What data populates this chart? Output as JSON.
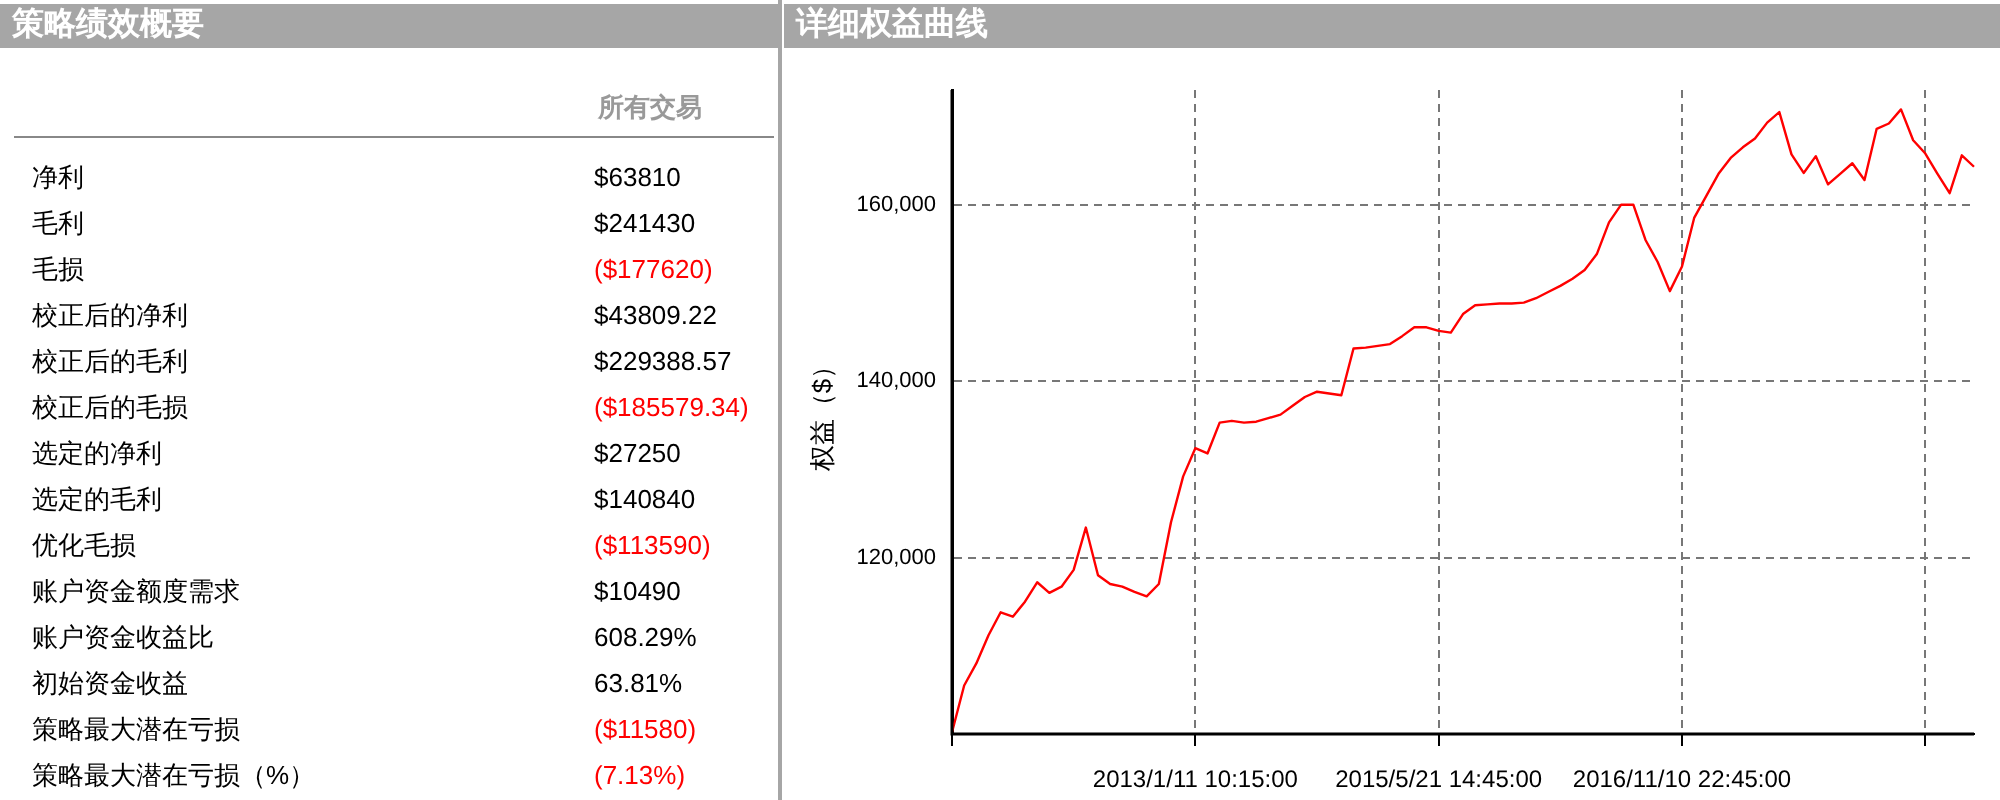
{
  "chart_data": [
    {
      "type": "other",
      "title": "策略绩效概要",
      "categories": [
        "净利",
        "毛利",
        "毛损",
        "校正后的净利",
        "校正后的毛利",
        "校正后的毛损",
        "选定的净利",
        "选定的毛利",
        "优化毛损",
        "账户资金额度需求",
        "账户资金收益比",
        "初始资金收益",
        "策略最大潜在亏损",
        "策略最大潜在亏损（%）"
      ],
      "series": [
        {
          "name": "所有交易",
          "values": [
            63810,
            241430,
            -177620,
            43809.22,
            229388.57,
            -185579.34,
            27250,
            140840,
            -113590,
            10490,
            608.29,
            63.81,
            -11580,
            -7.13
          ],
          "value_labels": [
            "$63810",
            "$241430",
            "($177620)",
            "$43809.22",
            "$229388.57",
            "($185579.34)",
            "$27250",
            "$140840",
            "($113590)",
            "$10490",
            "608.29%",
            "63.81%",
            "($11580)",
            "(7.13%)"
          ],
          "colors": [
            "#000000",
            "#000000",
            "#ff0000",
            "#000000",
            "#000000",
            "#ff0000",
            "#000000",
            "#000000",
            "#ff0000",
            "#000000",
            "#000000",
            "#000000",
            "#ff0000",
            "#ff0000"
          ]
        }
      ]
    },
    {
      "type": "line",
      "title": "详细权益曲线",
      "ylabel": "权益（$）",
      "grid": true,
      "legend": false,
      "marker": "none",
      "categories": [
        null,
        null,
        null,
        null,
        null,
        null,
        null,
        null,
        null,
        null,
        null,
        null,
        null,
        null,
        null,
        null,
        null,
        null,
        null,
        null,
        "2013/1/11 10:15:00",
        null,
        null,
        null,
        null,
        null,
        null,
        null,
        null,
        null,
        null,
        null,
        null,
        null,
        null,
        null,
        null,
        null,
        null,
        null,
        "2015/5/21 14:45:00",
        null,
        null,
        null,
        null,
        null,
        null,
        null,
        null,
        null,
        null,
        null,
        null,
        null,
        null,
        null,
        null,
        null,
        null,
        null,
        "2016/11/10 22:45:00",
        null,
        null,
        null,
        null,
        null,
        null,
        null,
        null,
        null,
        null,
        null,
        null,
        null,
        null,
        null,
        null,
        null,
        null,
        null,
        null,
        null,
        null,
        null,
        null
      ],
      "ylim": [
        100000,
        173000
      ],
      "yticks": [
        {
          "value": 100000,
          "label": null
        },
        {
          "value": 120000,
          "label": "120,000"
        },
        {
          "value": 140000,
          "label": "140,000"
        },
        {
          "value": 160000,
          "label": "160,000"
        }
      ],
      "series": [
        {
          "color": "#ff0000",
          "values": [
            100200,
            105500,
            108000,
            111200,
            113800,
            113300,
            115000,
            117200,
            116000,
            116700,
            118600,
            123400,
            118000,
            117000,
            116700,
            116100,
            115600,
            117000,
            124000,
            129200,
            132400,
            131800,
            135300,
            135500,
            135300,
            135400,
            135800,
            136200,
            137200,
            138200,
            138800,
            138600,
            138400,
            143700,
            143800,
            144000,
            144200,
            145100,
            146100,
            146100,
            145700,
            145500,
            147600,
            148600,
            148700,
            148800,
            148800,
            148900,
            149400,
            150100,
            150800,
            151600,
            152600,
            154400,
            158000,
            160000,
            160000,
            156000,
            153500,
            150200,
            153000,
            158500,
            161000,
            163500,
            165300,
            166500,
            167500,
            169300,
            170500,
            165700,
            163600,
            165500,
            162300,
            163500,
            164700,
            162800,
            168600,
            169200,
            170800,
            167300,
            165800,
            163500,
            161300,
            165600,
            164300
          ]
        }
      ]
    }
  ]
}
